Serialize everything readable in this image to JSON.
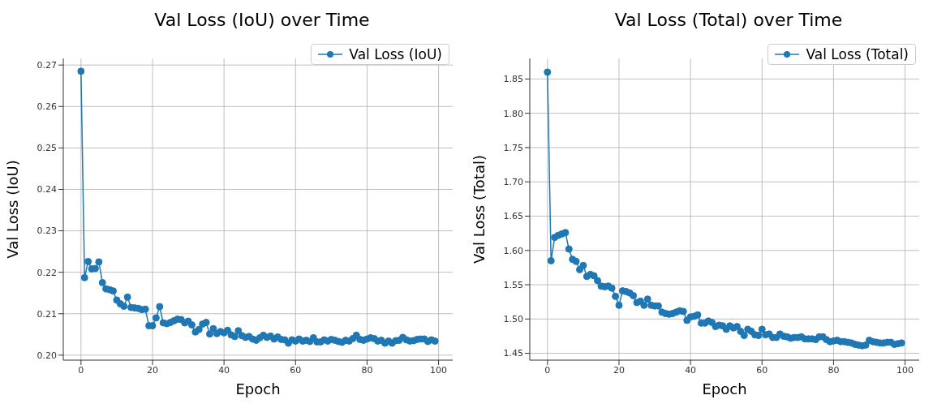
{
  "chart_data": [
    {
      "type": "line",
      "title": "Val Loss (IoU) over Time",
      "xlabel": "Epoch",
      "ylabel": "Val Loss (IoU)",
      "x": [
        0,
        1,
        2,
        3,
        4,
        5,
        6,
        7,
        8,
        9,
        10,
        11,
        12,
        13,
        14,
        15,
        16,
        17,
        18,
        19,
        20,
        21,
        22,
        23,
        24,
        25,
        26,
        27,
        28,
        29,
        30,
        31,
        32,
        33,
        34,
        35,
        36,
        37,
        38,
        39,
        40,
        41,
        42,
        43,
        44,
        45,
        46,
        47,
        48,
        49,
        50,
        51,
        52,
        53,
        54,
        55,
        56,
        57,
        58,
        59,
        60,
        61,
        62,
        63,
        64,
        65,
        66,
        67,
        68,
        69,
        70,
        71,
        72,
        73,
        74,
        75,
        76,
        77,
        78,
        79,
        80,
        81,
        82,
        83,
        84,
        85,
        86,
        87,
        88,
        89,
        90,
        91,
        92,
        93,
        94,
        95,
        96,
        97,
        98,
        99
      ],
      "series": [
        {
          "name": "Val Loss (IoU)",
          "color": "#1f77b4",
          "values": [
            0.2685,
            0.2187,
            0.2226,
            0.2208,
            0.2209,
            0.2225,
            0.2175,
            0.216,
            0.2158,
            0.2155,
            0.2133,
            0.2124,
            0.2118,
            0.214,
            0.2115,
            0.2114,
            0.2113,
            0.211,
            0.2111,
            0.2071,
            0.2071,
            0.209,
            0.2117,
            0.2078,
            0.2076,
            0.2079,
            0.2083,
            0.2087,
            0.2086,
            0.2078,
            0.2082,
            0.2073,
            0.2056,
            0.2062,
            0.2075,
            0.2079,
            0.2051,
            0.2064,
            0.2052,
            0.2057,
            0.2054,
            0.206,
            0.2049,
            0.2045,
            0.2059,
            0.2047,
            0.2043,
            0.2045,
            0.2039,
            0.2036,
            0.2042,
            0.2048,
            0.2043,
            0.2046,
            0.2039,
            0.2044,
            0.2038,
            0.2037,
            0.2029,
            0.2037,
            0.2034,
            0.2039,
            0.2034,
            0.2036,
            0.2033,
            0.2042,
            0.2032,
            0.2032,
            0.2037,
            0.2034,
            0.2038,
            0.2036,
            0.2033,
            0.2031,
            0.2036,
            0.2034,
            0.204,
            0.2048,
            0.2038,
            0.2036,
            0.2039,
            0.2042,
            0.204,
            0.2034,
            0.2036,
            0.2029,
            0.2034,
            0.2029,
            0.2035,
            0.2036,
            0.2043,
            0.2037,
            0.2034,
            0.2035,
            0.2038,
            0.2039,
            0.2039,
            0.2033,
            0.2037,
            0.2034
          ]
        }
      ],
      "xlim": [
        -4.95,
        103.95
      ],
      "xticks": [
        0,
        20,
        40,
        60,
        80,
        100
      ],
      "ylim": [
        0.1988,
        0.2716
      ],
      "yticks": [
        {
          "value": 0.2,
          "label": "0.20"
        },
        0.21,
        0.22,
        0.23,
        0.24,
        0.25,
        0.26,
        0.27
      ],
      "grid": true,
      "legend": "top right",
      "marker": "circle",
      "line_style": "solid"
    },
    {
      "type": "line",
      "title": "Val Loss (Total) over Time",
      "xlabel": "Epoch",
      "ylabel": "Val Loss (Total)",
      "x": [
        0,
        1,
        2,
        3,
        4,
        5,
        6,
        7,
        8,
        9,
        10,
        11,
        12,
        13,
        14,
        15,
        16,
        17,
        18,
        19,
        20,
        21,
        22,
        23,
        24,
        25,
        26,
        27,
        28,
        29,
        30,
        31,
        32,
        33,
        34,
        35,
        36,
        37,
        38,
        39,
        40,
        41,
        42,
        43,
        44,
        45,
        46,
        47,
        48,
        49,
        50,
        51,
        52,
        53,
        54,
        55,
        56,
        57,
        58,
        59,
        60,
        61,
        62,
        63,
        64,
        65,
        66,
        67,
        68,
        69,
        70,
        71,
        72,
        73,
        74,
        75,
        76,
        77,
        78,
        79,
        80,
        81,
        82,
        83,
        84,
        85,
        86,
        87,
        88,
        89,
        90,
        91,
        92,
        93,
        94,
        95,
        96,
        97,
        98,
        99
      ],
      "series": [
        {
          "name": "Val Loss (Total)",
          "color": "#1f77b4",
          "values": [
            1.86,
            1.585,
            1.619,
            1.622,
            1.624,
            1.626,
            1.602,
            1.587,
            1.584,
            1.572,
            1.578,
            1.562,
            1.565,
            1.563,
            1.556,
            1.548,
            1.547,
            1.548,
            1.545,
            1.533,
            1.52,
            1.541,
            1.54,
            1.538,
            1.534,
            1.524,
            1.526,
            1.52,
            1.529,
            1.52,
            1.519,
            1.519,
            1.51,
            1.508,
            1.507,
            1.508,
            1.51,
            1.512,
            1.511,
            1.498,
            1.503,
            1.504,
            1.506,
            1.494,
            1.494,
            1.497,
            1.495,
            1.489,
            1.491,
            1.49,
            1.485,
            1.49,
            1.487,
            1.489,
            1.482,
            1.476,
            1.485,
            1.482,
            1.477,
            1.476,
            1.485,
            1.477,
            1.478,
            1.473,
            1.473,
            1.478,
            1.475,
            1.474,
            1.472,
            1.473,
            1.473,
            1.474,
            1.471,
            1.471,
            1.471,
            1.47,
            1.474,
            1.474,
            1.47,
            1.467,
            1.468,
            1.469,
            1.467,
            1.467,
            1.466,
            1.465,
            1.463,
            1.462,
            1.461,
            1.462,
            1.469,
            1.467,
            1.466,
            1.465,
            1.465,
            1.466,
            1.466,
            1.463,
            1.464,
            1.465
          ]
        }
      ],
      "xlim": [
        -4.95,
        103.95
      ],
      "xticks": [
        0,
        20,
        40,
        60,
        80,
        100
      ],
      "ylim": [
        1.44,
        1.88
      ],
      "yticks": [
        1.45,
        {
          "value": 1.5,
          "label": "1.50"
        },
        1.55,
        {
          "value": 1.6,
          "label": "1.60"
        },
        1.65,
        {
          "value": 1.7,
          "label": "1.70"
        },
        1.75,
        {
          "value": 1.8,
          "label": "1.80"
        },
        1.85
      ],
      "grid": true,
      "legend": "top right",
      "marker": "circle",
      "line_style": "solid"
    }
  ]
}
